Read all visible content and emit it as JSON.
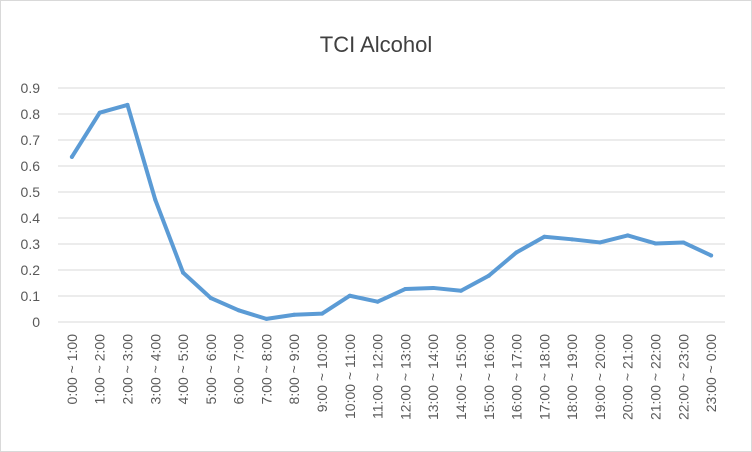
{
  "chart_data": {
    "type": "line",
    "title": "TCI Alcohol",
    "xlabel": "",
    "ylabel": "",
    "categories": [
      "0:00 ~ 1:00",
      "1:00 ~ 2:00",
      "2:00 ~ 3:00",
      "3:00 ~ 4:00",
      "4:00 ~ 5:00",
      "5:00 ~ 6:00",
      "6:00 ~ 7:00",
      "7:00 ~ 8:00",
      "8:00 ~ 9:00",
      "9:00 ~ 10:00",
      "10:00 ~ 11:00",
      "11:00 ~ 12:00",
      "12:00 ~ 13:00",
      "13:00 ~ 14:00",
      "14:00 ~ 15:00",
      "15:00 ~ 16:00",
      "16:00 ~ 17:00",
      "17:00 ~ 18:00",
      "18:00 ~ 19:00",
      "19:00 ~ 20:00",
      "20:00 ~ 21:00",
      "21:00 ~ 22:00",
      "22:00 ~ 23:00",
      "23:00 ~ 0:00"
    ],
    "series": [
      {
        "values": [
          0.635,
          0.805,
          0.835,
          0.47,
          0.19,
          0.092,
          0.045,
          0.012,
          0.028,
          0.032,
          0.101,
          0.078,
          0.127,
          0.131,
          0.12,
          0.178,
          0.268,
          0.328,
          0.318,
          0.306,
          0.333,
          0.302,
          0.306,
          0.256
        ],
        "color": "#5b9bd5"
      }
    ],
    "ylim": [
      0,
      0.9
    ],
    "yticks": [
      "0",
      "0.1",
      "0.2",
      "0.3",
      "0.4",
      "0.5",
      "0.6",
      "0.7",
      "0.8",
      "0.9"
    ],
    "grid": true,
    "legend": "none",
    "gridline_color": "#d9d9d9"
  }
}
